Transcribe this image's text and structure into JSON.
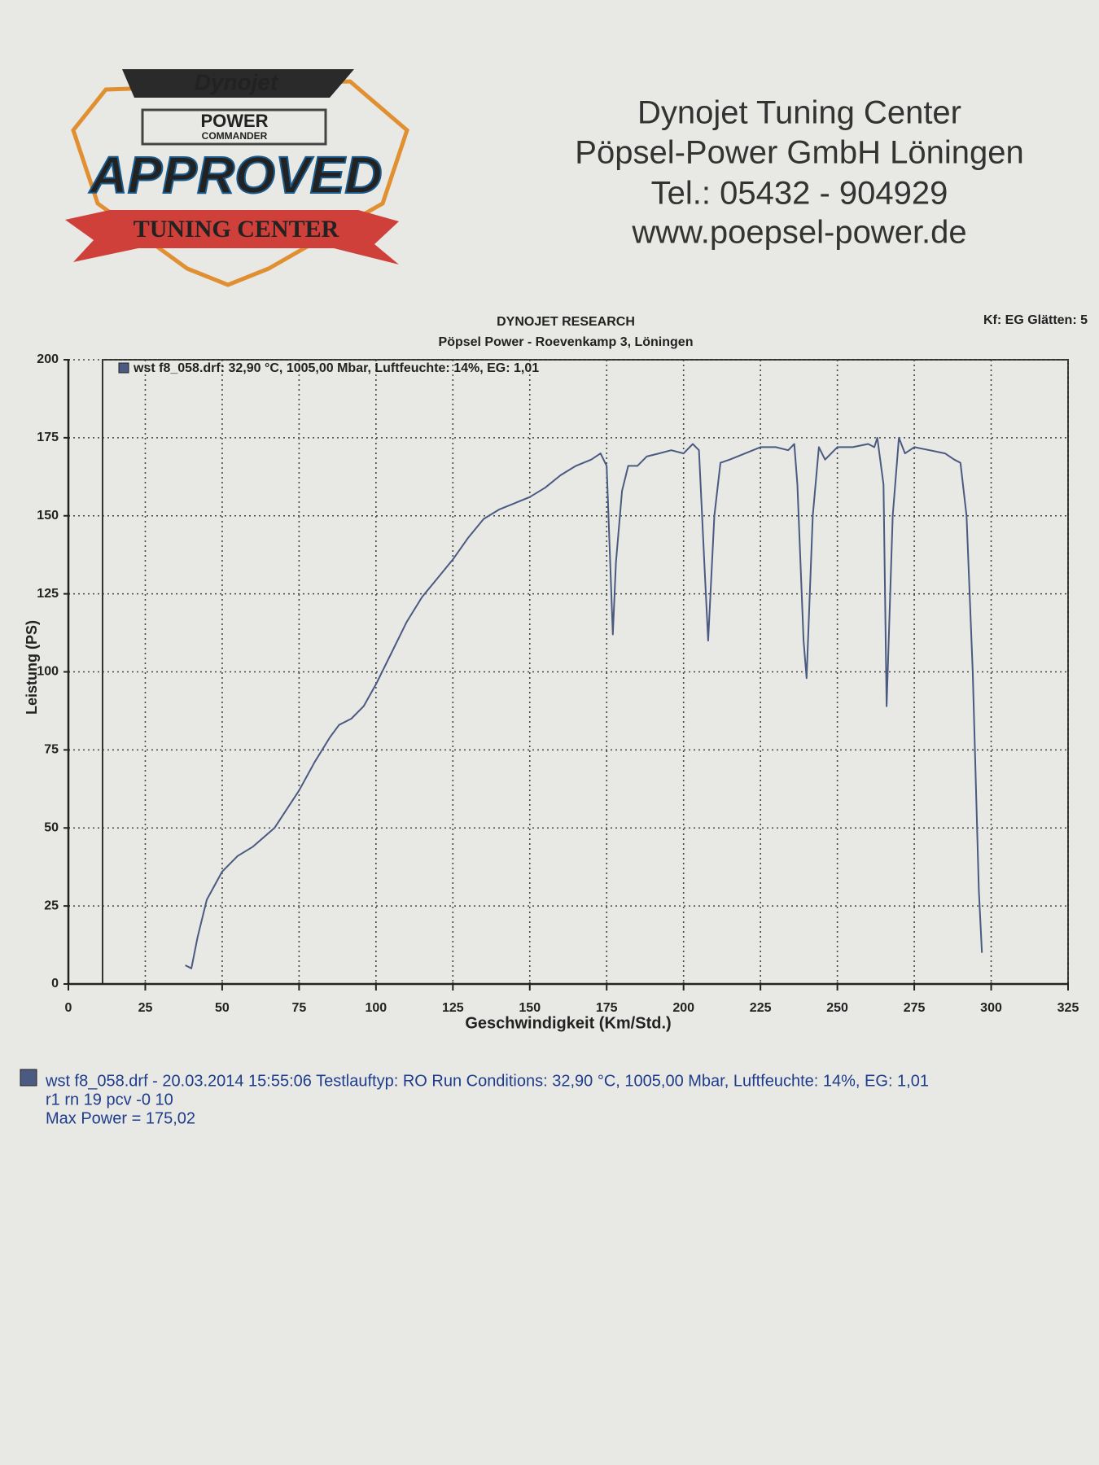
{
  "logo": {
    "brand": "Dynojet",
    "product_top": "POWER",
    "product_bottom": "COMMANDER",
    "badge": "APPROVED",
    "banner": "TUNING CENTER"
  },
  "header": {
    "lines": [
      "Dynojet Tuning Center",
      "Pöpsel-Power GmbH  Löningen",
      "Tel.: 05432 - 904929",
      "www.poepsel-power.de"
    ]
  },
  "chart_data": {
    "type": "line",
    "title": "DYNOJET RESEARCH",
    "subtitle": "Pöpsel Power - Roevenkamp 3, Löningen",
    "corner_note": "Kf: EG  Glätten: 5",
    "x_label": "Geschwindigkeit (Km/Std.)",
    "y_label": "Leistung (PS)",
    "xlim": [
      0,
      325
    ],
    "xticks": [
      0,
      25,
      50,
      75,
      100,
      125,
      150,
      175,
      200,
      225,
      250,
      275,
      300,
      325
    ],
    "ylim": [
      0,
      200
    ],
    "yticks": [
      0,
      25,
      50,
      75,
      100,
      125,
      150,
      175,
      200
    ],
    "grid": true,
    "legend": "top-left",
    "series": [
      {
        "name": "wst f8_058.drf: 32,90 °C, 1005,00 Mbar, Luftfeuchte: 14%, EG: 1,01",
        "color": "#4a5a80",
        "x": [
          38,
          40,
          42,
          45,
          50,
          55,
          60,
          67,
          75,
          80,
          85,
          88,
          92,
          96,
          100,
          105,
          110,
          115,
          120,
          125,
          130,
          135,
          140,
          145,
          150,
          155,
          160,
          165,
          170,
          173,
          175,
          177,
          178,
          180,
          182,
          185,
          188,
          192,
          196,
          200,
          203,
          205,
          207,
          208,
          210,
          212,
          215,
          220,
          225,
          230,
          234,
          236,
          237,
          239,
          240,
          242,
          244,
          246,
          250,
          255,
          260,
          262,
          263,
          265,
          266,
          268,
          270,
          272,
          275,
          280,
          285,
          288,
          290,
          292,
          294,
          296,
          297
        ],
        "values": [
          6,
          5,
          15,
          27,
          36,
          41,
          44,
          50,
          62,
          71,
          79,
          83,
          85,
          89,
          96,
          106,
          116,
          124,
          130,
          136,
          143,
          149,
          152,
          154,
          156,
          159,
          163,
          166,
          168,
          170,
          166,
          112,
          135,
          158,
          166,
          166,
          169,
          170,
          171,
          170,
          173,
          171,
          130,
          110,
          150,
          167,
          168,
          170,
          172,
          172,
          171,
          173,
          160,
          110,
          98,
          150,
          172,
          168,
          172,
          172,
          173,
          172,
          175,
          160,
          89,
          150,
          175,
          170,
          172,
          171,
          170,
          168,
          167,
          150,
          100,
          30,
          10
        ]
      }
    ]
  },
  "footer": {
    "lines": [
      "wst f8_058.drf - 20.03.2014 15:55:06  Testlauftyp: RO  Run Conditions: 32,90 °C, 1005,00 Mbar,  Luftfeuchte: 14%, EG: 1,01",
      "r1 rn 19 pcv -0  10",
      "Max Power = 175,02"
    ]
  }
}
